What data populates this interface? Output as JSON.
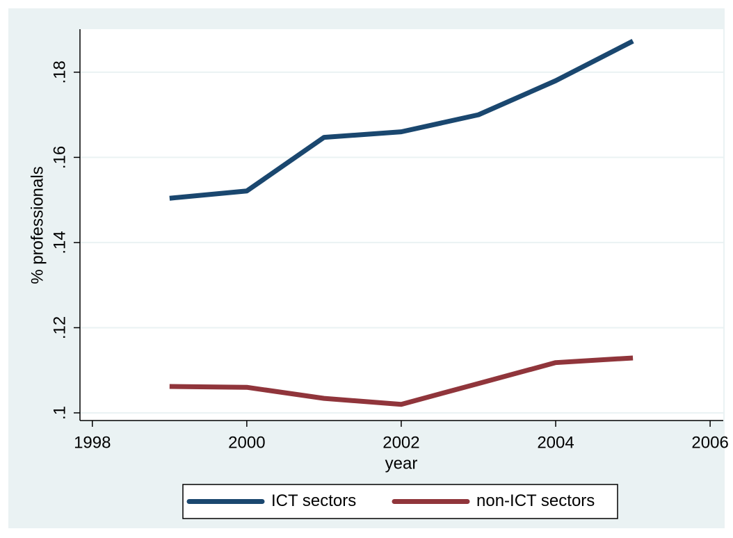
{
  "chart_data": {
    "type": "line",
    "x": [
      1999,
      2000,
      2001,
      2002,
      2003,
      2004,
      2005
    ],
    "series": [
      {
        "name": "ICT sectors",
        "color": "#1a476f",
        "values": [
          0.1504,
          0.1521,
          0.1647,
          0.166,
          0.17,
          0.178,
          0.1873
        ]
      },
      {
        "name": "non-ICT sectors",
        "color": "#90353b",
        "values": [
          0.1062,
          0.106,
          0.1034,
          0.102,
          0.1069,
          0.1118,
          0.1129
        ]
      }
    ],
    "xlabel": "year",
    "ylabel": "% professionals",
    "xlim": [
      1997.84,
      2006.17
    ],
    "xticks": [
      1998,
      2000,
      2002,
      2004,
      2006
    ],
    "ylim": [
      0.0982,
      0.1901
    ],
    "yticks": [
      {
        "value": 0.1,
        "label": ".1"
      },
      {
        "value": 0.12,
        "label": ".12"
      },
      {
        "value": 0.14,
        "label": ".14"
      },
      {
        "value": 0.16,
        "label": ".16"
      },
      {
        "value": 0.18,
        "label": ".18"
      }
    ],
    "grid": true,
    "legend": "bottom"
  }
}
